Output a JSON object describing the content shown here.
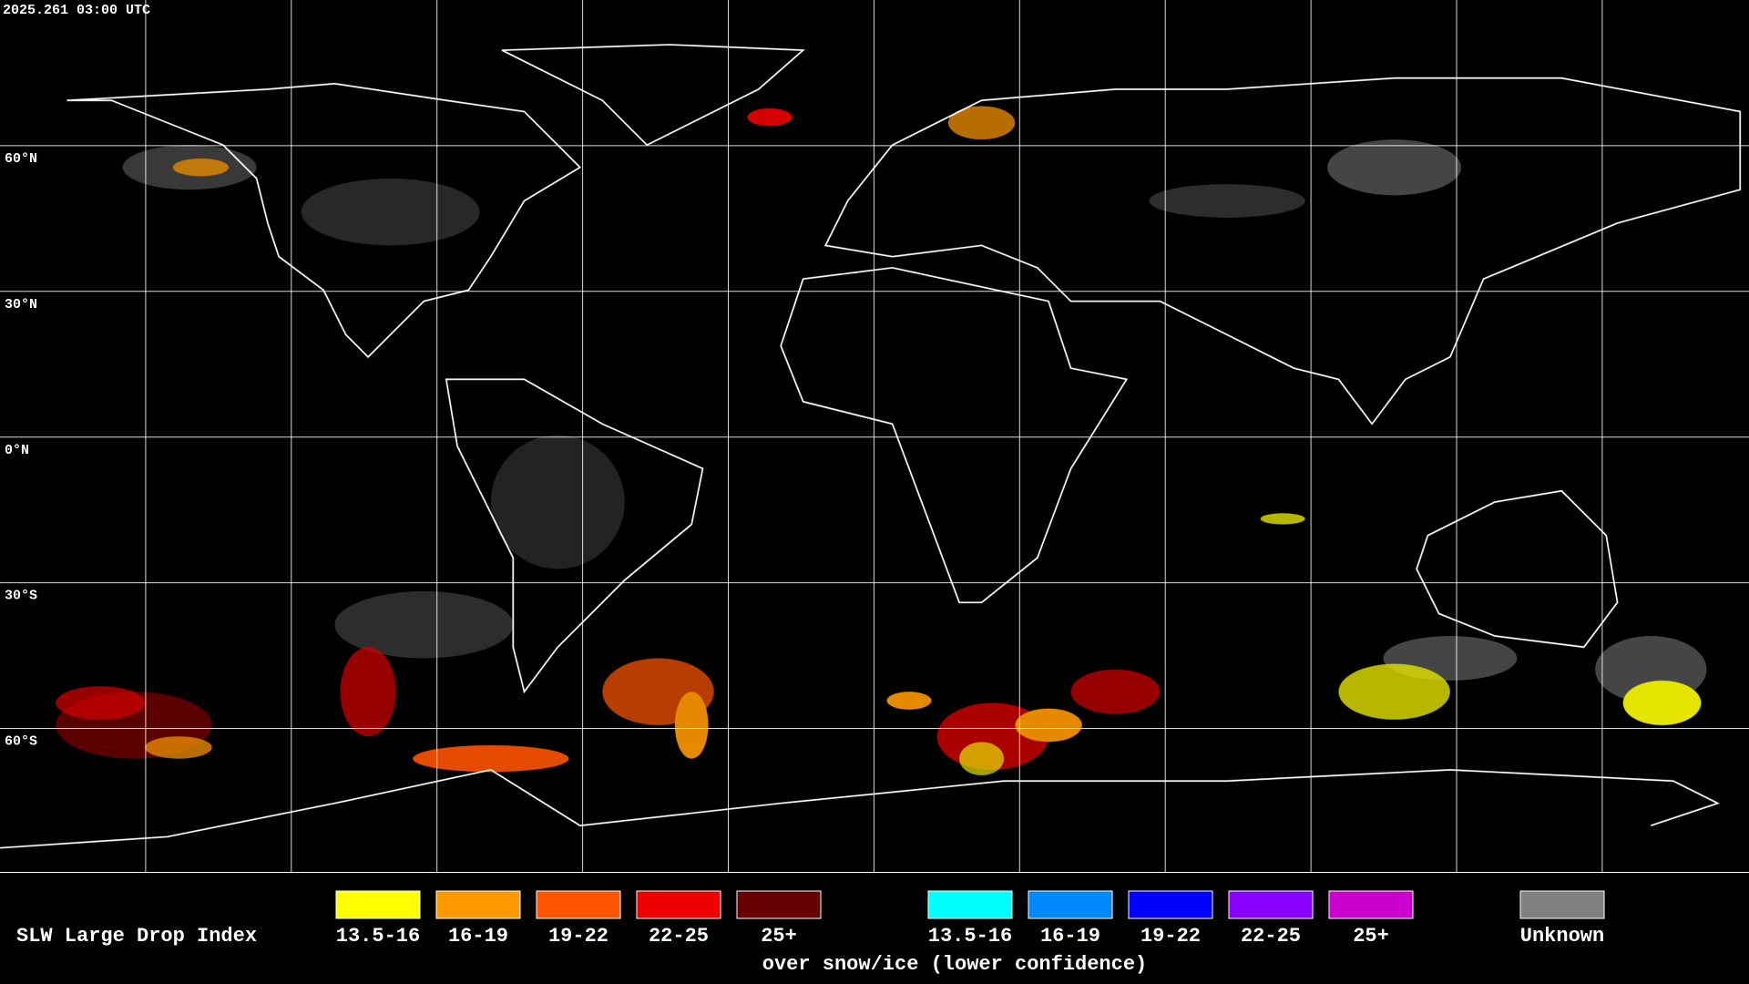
{
  "header": {
    "timestamp": "2025.261 03:00 UTC"
  },
  "map": {
    "lat_labels": [
      "60°N",
      "30°N",
      "0°N",
      "30°S",
      "60°S"
    ]
  },
  "legend": {
    "title": "SLW Large Drop Index",
    "items": [
      {
        "label": "13.5-16",
        "color": "#ffff00"
      },
      {
        "label": "16-19",
        "color": "#ff9900"
      },
      {
        "label": "19-22",
        "color": "#ff5500"
      },
      {
        "label": "22-25",
        "color": "#ee0000"
      },
      {
        "label": "25+",
        "color": "#660000"
      }
    ],
    "snow_items": [
      {
        "label": "13.5-16",
        "color": "#00ffff"
      },
      {
        "label": "16-19",
        "color": "#0088ff"
      },
      {
        "label": "19-22",
        "color": "#0000ff"
      },
      {
        "label": "22-25",
        "color": "#8800ff"
      },
      {
        "label": "25+",
        "color": "#cc00cc"
      }
    ],
    "snow_caption": "over snow/ice (lower confidence)",
    "unknown": {
      "label": "Unknown",
      "color": "#808080"
    }
  }
}
